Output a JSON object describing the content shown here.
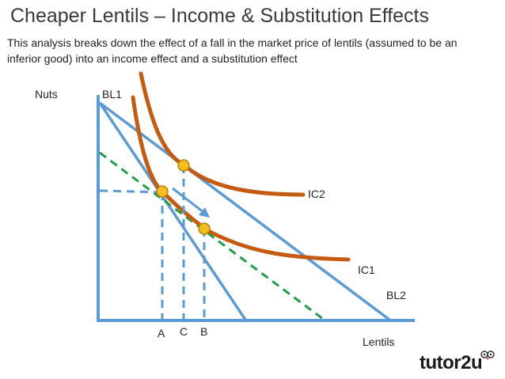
{
  "header": {
    "title": "Cheaper Lentils – Income & Substitution Effects",
    "subtitle": "This analysis breaks down the effect of a fall in the market price of lentils (assumed to be an inferior good) into an income effect and a substitution effect"
  },
  "diagram": {
    "y_axis_label": "Nuts",
    "x_axis_label": "Lentils",
    "budget_line_1": "BL1",
    "budget_line_2": "BL2",
    "indifference_curve_1": "IC1",
    "indifference_curve_2": "IC2",
    "point_a": "A",
    "point_b": "B",
    "point_c": "C",
    "colors": {
      "axes": "#5b9bd5",
      "budget_lines": "#5b9bd5",
      "indifference_curves": "#c55a11",
      "compensated_budget_line": "#1f9e4a",
      "points": "#f5bd1f"
    }
  },
  "brand": {
    "name_part1": "tutor",
    "name_part2": "2u"
  }
}
